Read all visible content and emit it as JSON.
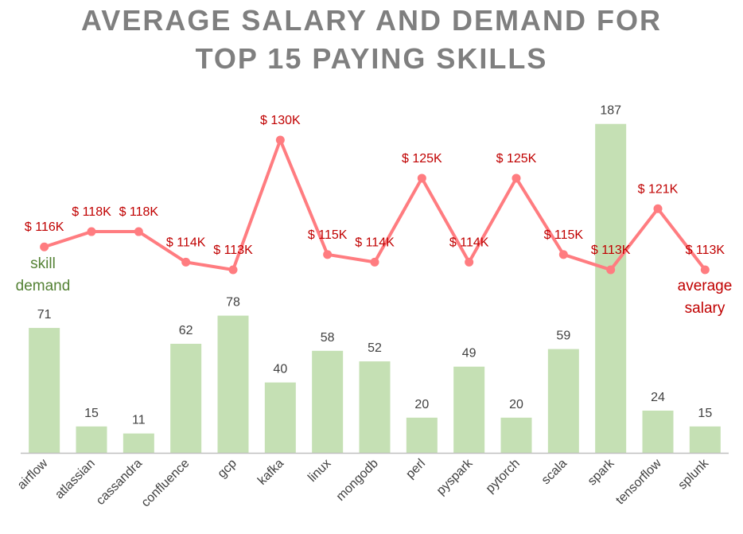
{
  "chart_data": {
    "type": "bar+line",
    "title_lines": [
      "AVERAGE SALARY AND DEMAND FOR",
      "TOP 15 PAYING SKILLS"
    ],
    "categories": [
      "airflow",
      "atlassian",
      "cassandra",
      "confluence",
      "gcp",
      "kafka",
      "linux",
      "mongodb",
      "perl",
      "pyspark",
      "pytorch",
      "scala",
      "spark",
      "tensorflow",
      "splunk"
    ],
    "series": [
      {
        "kind": "bar",
        "label_lines": [
          "skill",
          "demand"
        ],
        "values": [
          71,
          15,
          11,
          62,
          78,
          40,
          58,
          52,
          20,
          49,
          20,
          59,
          187,
          24,
          15
        ],
        "data_labels": [
          "71",
          "15",
          "11",
          "62",
          "78",
          "40",
          "58",
          "52",
          "20",
          "49",
          "20",
          "59",
          "187",
          "24",
          "15"
        ],
        "color": "#c5e0b4",
        "label_color": "#548235"
      },
      {
        "kind": "line",
        "label_lines": [
          "average",
          "salary"
        ],
        "values": [
          116,
          118,
          118,
          114,
          113,
          130,
          115,
          114,
          125,
          114,
          125,
          115,
          113,
          121,
          113
        ],
        "data_labels": [
          "$ 116K",
          "$ 118K",
          "$ 118K",
          "$ 114K",
          "$ 113K",
          "$ 130K",
          "$ 115K",
          "$ 114K",
          "$ 125K",
          "$ 114K",
          "$ 125K",
          "$ 115K",
          "$ 113K",
          "$ 121K",
          "$ 113K"
        ],
        "color": "#ff7c80",
        "label_color": "#c00000"
      }
    ],
    "grid": false,
    "data_label_color": "#404040",
    "axis_label_color": "#404040",
    "axis_line_color": "#bfbfbf"
  }
}
